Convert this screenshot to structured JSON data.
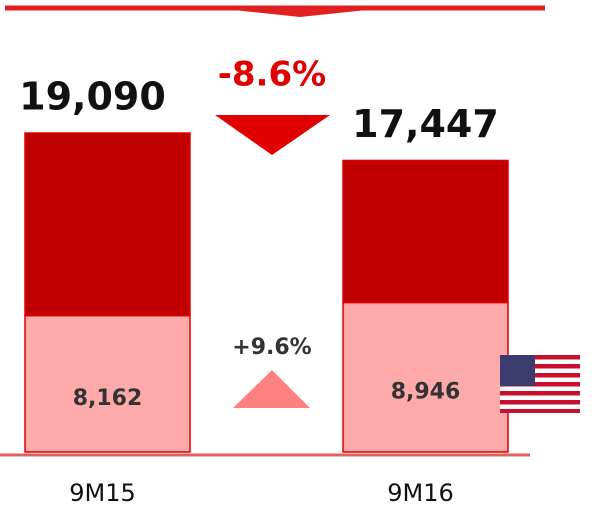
{
  "chart_data": {
    "type": "stacked_bar",
    "categories": [
      "9M15",
      "9M16"
    ],
    "series": [
      {
        "color": "#ffaaaa",
        "values": [
          8162,
          8946
        ],
        "value_labels": [
          "8,162",
          "8,946"
        ]
      },
      {
        "color": "#c00000",
        "values": [
          10928,
          8501
        ]
      }
    ],
    "totals": [
      19090,
      17447
    ],
    "total_labels": [
      "19,090",
      "17,447"
    ],
    "annotations": [
      "-8.6%",
      "+9.6%"
    ],
    "ylim": [
      0,
      19090
    ]
  }
}
